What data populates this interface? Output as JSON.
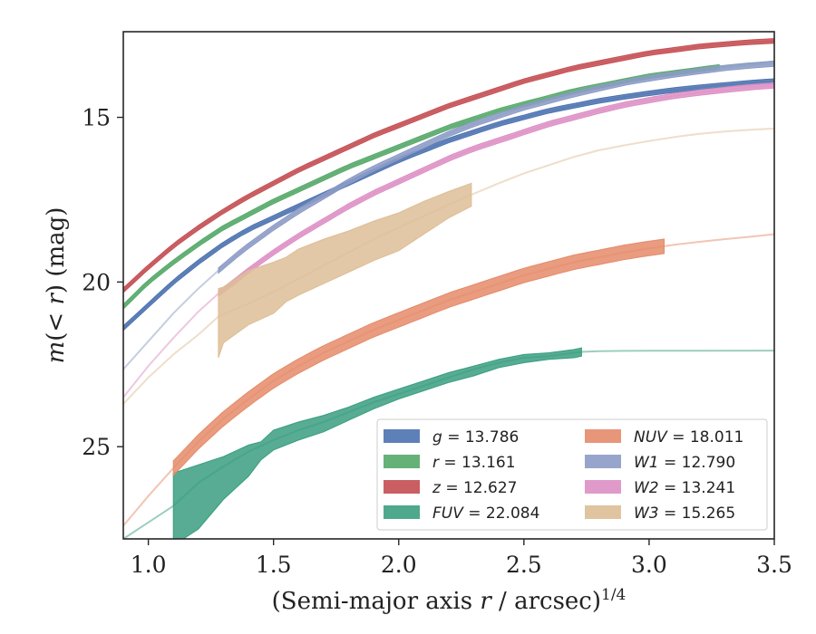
{
  "chart_data": {
    "type": "line",
    "title": "",
    "xlabel": "(Semi-major axis r / arcsec)^1/4",
    "ylabel": "m(< r) (mag)",
    "xlim": [
      0.9,
      3.5
    ],
    "ylim": [
      27.8,
      12.4
    ],
    "y_inverted": true,
    "grid": false,
    "legend_position": "lower-right",
    "legend_columns": 2,
    "x_ticks": [
      1.0,
      1.5,
      2.0,
      2.5,
      3.0,
      3.5
    ],
    "x_tick_labels": [
      "1.0",
      "1.5",
      "2.0",
      "2.5",
      "3.0",
      "3.5"
    ],
    "y_ticks": [
      15,
      20,
      25
    ],
    "y_tick_labels": [
      "15",
      "20",
      "25"
    ],
    "series": [
      {
        "name": "g",
        "legend_label": "g = 13.786",
        "color": "#4c72b0",
        "measured_range": [
          0.9,
          3.5
        ],
        "band_halfwidth": 0.07,
        "x": [
          0.9,
          1.0,
          1.1,
          1.2,
          1.3,
          1.4,
          1.5,
          1.6,
          1.7,
          1.8,
          1.9,
          2.0,
          2.1,
          2.2,
          2.3,
          2.4,
          2.5,
          2.6,
          2.7,
          2.8,
          2.9,
          3.0,
          3.1,
          3.2,
          3.3,
          3.4,
          3.5
        ],
        "y": [
          21.4,
          20.7,
          20.0,
          19.4,
          18.85,
          18.4,
          18.05,
          17.7,
          17.35,
          17.0,
          16.65,
          16.3,
          16.0,
          15.7,
          15.45,
          15.2,
          15.0,
          14.8,
          14.65,
          14.5,
          14.38,
          14.27,
          14.17,
          14.09,
          14.02,
          13.95,
          13.9
        ]
      },
      {
        "name": "r",
        "legend_label": "r = 13.161",
        "color": "#55a868",
        "measured_range": [
          0.9,
          3.28
        ],
        "band_halfwidth": 0.07,
        "x": [
          0.9,
          1.0,
          1.1,
          1.2,
          1.3,
          1.4,
          1.5,
          1.6,
          1.7,
          1.8,
          1.9,
          2.0,
          2.1,
          2.2,
          2.3,
          2.4,
          2.5,
          2.6,
          2.7,
          2.8,
          2.9,
          3.0,
          3.1,
          3.2,
          3.3,
          3.4,
          3.5
        ],
        "y": [
          20.75,
          20.0,
          19.4,
          18.85,
          18.35,
          17.95,
          17.55,
          17.2,
          16.85,
          16.5,
          16.2,
          15.9,
          15.6,
          15.3,
          15.05,
          14.8,
          14.6,
          14.4,
          14.2,
          14.05,
          13.9,
          13.75,
          13.65,
          13.55,
          13.45,
          13.38,
          13.3
        ]
      },
      {
        "name": "z",
        "legend_label": "z = 12.627",
        "color": "#c44e52",
        "measured_range": [
          0.9,
          3.5
        ],
        "band_halfwidth": 0.07,
        "x": [
          0.9,
          1.0,
          1.1,
          1.2,
          1.3,
          1.4,
          1.5,
          1.6,
          1.7,
          1.8,
          1.9,
          2.0,
          2.1,
          2.2,
          2.3,
          2.4,
          2.5,
          2.6,
          2.7,
          2.8,
          2.9,
          3.0,
          3.1,
          3.2,
          3.3,
          3.4,
          3.5
        ],
        "y": [
          20.25,
          19.55,
          18.9,
          18.35,
          17.85,
          17.4,
          17.0,
          16.6,
          16.25,
          15.9,
          15.55,
          15.25,
          14.95,
          14.65,
          14.4,
          14.15,
          13.9,
          13.7,
          13.5,
          13.35,
          13.2,
          13.05,
          12.95,
          12.85,
          12.78,
          12.72,
          12.68
        ]
      },
      {
        "name": "FUV",
        "legend_label": "FUV = 22.084",
        "color": "#3a9e80",
        "measured_range": [
          1.1,
          2.73
        ],
        "x": [
          0.9,
          1.0,
          1.1,
          1.2,
          1.3,
          1.4,
          1.5,
          1.6,
          1.7,
          1.8,
          1.9,
          2.0,
          2.1,
          2.2,
          2.3,
          2.4,
          2.5,
          2.6,
          2.7,
          2.73,
          2.8,
          2.9,
          3.0,
          3.2,
          3.5
        ],
        "y": [
          27.8,
          27.3,
          26.8,
          26.1,
          25.6,
          25.15,
          24.8,
          24.5,
          24.25,
          23.95,
          23.65,
          23.4,
          23.15,
          22.9,
          22.65,
          22.45,
          22.3,
          22.25,
          22.15,
          22.12,
          22.1,
          22.09,
          22.087,
          22.085,
          22.084
        ],
        "band_x": [
          1.1,
          1.2,
          1.3,
          1.4,
          1.45,
          1.5,
          1.6,
          1.7,
          1.8,
          1.9,
          2.0,
          2.1,
          2.2,
          2.3,
          2.4,
          2.5,
          2.6,
          2.7,
          2.73
        ],
        "band_upper": [
          25.8,
          25.55,
          25.3,
          24.95,
          24.85,
          24.5,
          24.25,
          24.05,
          23.8,
          23.5,
          23.25,
          23.0,
          22.75,
          22.55,
          22.35,
          22.2,
          22.15,
          22.05,
          22.0
        ],
        "band_lower": [
          28.0,
          27.5,
          26.6,
          25.9,
          25.4,
          25.1,
          24.8,
          24.55,
          24.2,
          23.85,
          23.55,
          23.3,
          23.05,
          22.85,
          22.6,
          22.45,
          22.35,
          22.3,
          22.25
        ]
      },
      {
        "name": "NUV",
        "legend_label": "NUV = 18.011",
        "color": "#e58b6a",
        "measured_range": [
          1.1,
          3.06
        ],
        "x": [
          0.9,
          1.0,
          1.1,
          1.2,
          1.3,
          1.4,
          1.5,
          1.6,
          1.7,
          1.8,
          1.9,
          2.0,
          2.1,
          2.2,
          2.3,
          2.4,
          2.5,
          2.6,
          2.7,
          2.8,
          2.9,
          3.0,
          3.1,
          3.2,
          3.3,
          3.4,
          3.5
        ],
        "y": [
          27.4,
          26.5,
          25.65,
          24.85,
          24.15,
          23.55,
          23.0,
          22.55,
          22.15,
          21.8,
          21.45,
          21.15,
          20.85,
          20.55,
          20.3,
          20.05,
          19.8,
          19.6,
          19.4,
          19.25,
          19.1,
          18.98,
          18.87,
          18.78,
          18.7,
          18.63,
          18.55
        ],
        "band_halfwidth": 0.22
      },
      {
        "name": "W1",
        "legend_label": "W1 = 12.790",
        "color": "#8c9bc6",
        "measured_range": [
          1.28,
          3.5
        ],
        "band_halfwidth": 0.08,
        "x": [
          0.9,
          1.0,
          1.1,
          1.2,
          1.28,
          1.35,
          1.4,
          1.5,
          1.6,
          1.7,
          1.8,
          1.9,
          2.0,
          2.1,
          2.2,
          2.3,
          2.4,
          2.5,
          2.6,
          2.7,
          2.8,
          2.9,
          3.0,
          3.1,
          3.2,
          3.3,
          3.4,
          3.5
        ],
        "y": [
          22.65,
          21.8,
          20.95,
          20.2,
          19.65,
          19.2,
          18.9,
          18.35,
          17.85,
          17.4,
          16.95,
          16.55,
          16.2,
          15.85,
          15.5,
          15.2,
          14.95,
          14.7,
          14.5,
          14.3,
          14.12,
          13.95,
          13.82,
          13.7,
          13.6,
          13.5,
          13.43,
          13.37
        ]
      },
      {
        "name": "W2",
        "legend_label": "W2 = 13.241",
        "color": "#dd8fc4",
        "measured_range": [
          1.28,
          3.5
        ],
        "band_halfwidth": 0.08,
        "x": [
          0.9,
          1.0,
          1.1,
          1.2,
          1.28,
          1.35,
          1.4,
          1.5,
          1.6,
          1.7,
          1.8,
          1.9,
          2.0,
          2.1,
          2.2,
          2.3,
          2.4,
          2.5,
          2.6,
          2.7,
          2.8,
          2.9,
          3.0,
          3.1,
          3.2,
          3.3,
          3.4,
          3.5
        ],
        "y": [
          23.5,
          22.55,
          21.7,
          20.9,
          20.35,
          19.95,
          19.65,
          19.1,
          18.6,
          18.15,
          17.7,
          17.3,
          16.95,
          16.6,
          16.25,
          15.95,
          15.7,
          15.45,
          15.2,
          15.0,
          14.8,
          14.62,
          14.48,
          14.35,
          14.25,
          14.17,
          14.09,
          14.03
        ]
      },
      {
        "name": "W3",
        "legend_label": "W3 = 15.265",
        "color": "#ddbe96",
        "measured_range": [
          1.28,
          2.29
        ],
        "x": [
          0.9,
          1.0,
          1.1,
          1.2,
          1.28,
          1.4,
          1.5,
          1.6,
          1.7,
          1.8,
          1.9,
          2.0,
          2.1,
          2.2,
          2.29,
          2.4,
          2.5,
          2.6,
          2.7,
          2.8,
          2.9,
          3.0,
          3.1,
          3.2,
          3.3,
          3.4,
          3.5
        ],
        "y": [
          23.7,
          22.9,
          22.2,
          21.6,
          21.05,
          20.65,
          20.3,
          19.9,
          19.5,
          19.1,
          18.7,
          18.35,
          18.0,
          17.65,
          17.35,
          17.0,
          16.7,
          16.45,
          16.2,
          16.0,
          15.85,
          15.72,
          15.6,
          15.5,
          15.43,
          15.38,
          15.34
        ],
        "band_x": [
          1.28,
          1.3,
          1.4,
          1.5,
          1.55,
          1.6,
          1.7,
          1.8,
          1.9,
          2.0,
          2.1,
          2.2,
          2.29
        ],
        "band_upper": [
          20.2,
          20.15,
          19.65,
          19.4,
          19.25,
          19.0,
          18.7,
          18.45,
          18.15,
          17.9,
          17.55,
          17.25,
          17.0
        ],
        "band_lower": [
          22.3,
          21.85,
          21.3,
          20.95,
          20.6,
          20.4,
          20.05,
          19.7,
          19.35,
          19.05,
          18.55,
          18.05,
          17.7
        ]
      }
    ]
  }
}
